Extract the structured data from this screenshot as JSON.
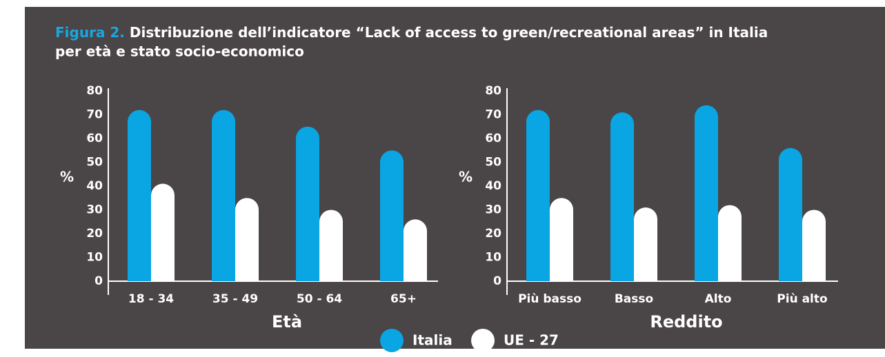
{
  "title_prefix": "Figura 2.",
  "title": [
    "Distribuzione dell’indicatore “Lack of access to green/recreational areas” in Italia",
    "per età e stato socio-economico"
  ],
  "chart_data": [
    {
      "type": "bar",
      "xlabel": "Età",
      "ylabel": "%",
      "categories": [
        "18 - 34",
        "35 - 49",
        "50 - 64",
        "65+"
      ],
      "series": [
        {
          "name": "Italia",
          "color": "#0aa5e3",
          "values": [
            72,
            72,
            65,
            55
          ]
        },
        {
          "name": "UE - 27",
          "color": "#ffffff",
          "values": [
            41,
            35,
            30,
            26
          ]
        }
      ],
      "ylim": [
        0,
        80
      ],
      "yticks": [
        0,
        10,
        20,
        30,
        40,
        50,
        60,
        70,
        80
      ]
    },
    {
      "type": "bar",
      "xlabel": "Reddito",
      "ylabel": "%",
      "categories": [
        "Più basso",
        "Basso",
        "Alto",
        "Più alto"
      ],
      "series": [
        {
          "name": "Italia",
          "color": "#0aa5e3",
          "values": [
            72,
            71,
            74,
            56
          ]
        },
        {
          "name": "UE - 27",
          "color": "#ffffff",
          "values": [
            35,
            31,
            32,
            30
          ]
        }
      ],
      "ylim": [
        0,
        80
      ],
      "yticks": [
        0,
        10,
        20,
        30,
        40,
        50,
        60,
        70,
        80
      ]
    }
  ]
}
